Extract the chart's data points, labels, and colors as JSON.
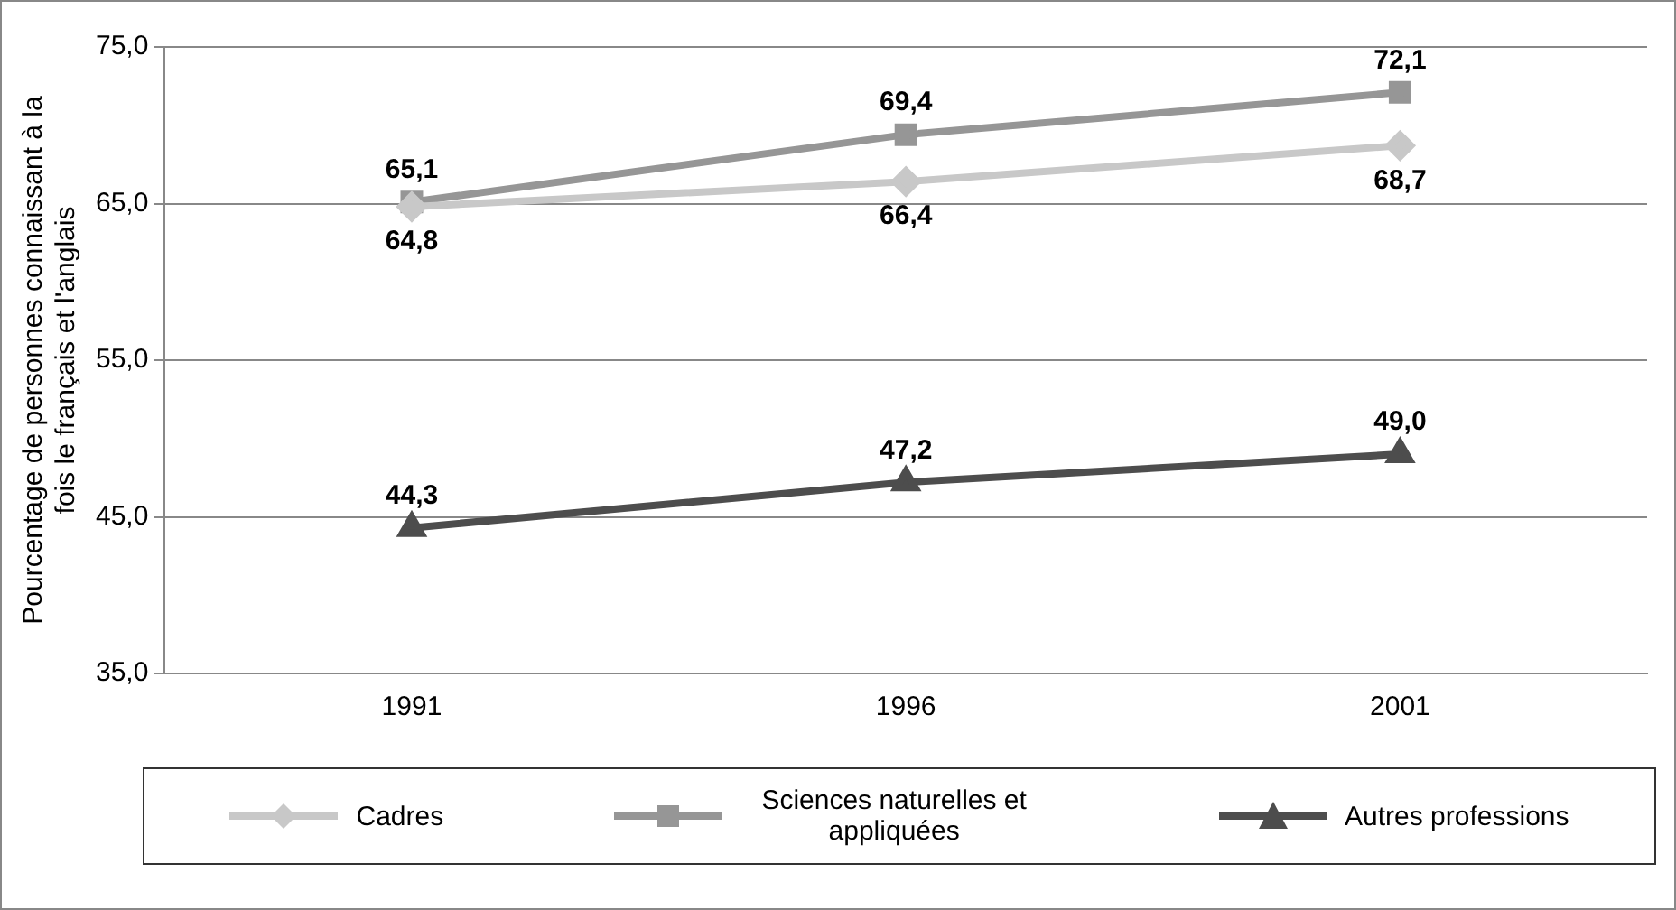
{
  "chart_data": {
    "type": "line",
    "ylabel": "Pourcentage de personnes connaissant à la fois le français et l'anglais",
    "categories": [
      "1991",
      "1996",
      "2001"
    ],
    "ylim": [
      35,
      75
    ],
    "yticks": [
      {
        "value": 35,
        "label": "35,0"
      },
      {
        "value": 45,
        "label": "45,0"
      },
      {
        "value": 55,
        "label": "55,0"
      },
      {
        "value": 65,
        "label": "65,0"
      },
      {
        "value": 75,
        "label": "75,0"
      }
    ],
    "grid": "y",
    "legend": "bottom",
    "series": [
      {
        "name": "Cadres",
        "color": "#c8c8c8",
        "marker": "diamond",
        "values": [
          64.8,
          66.4,
          68.7
        ],
        "value_labels": [
          "64,8",
          "66,4",
          "68,7"
        ]
      },
      {
        "name": "Sciences naturelles et appliquées",
        "color": "#969696",
        "marker": "square",
        "values": [
          65.1,
          69.4,
          72.1
        ],
        "value_labels": [
          "65,1",
          "69,4",
          "72,1"
        ]
      },
      {
        "name": "Autres professions",
        "color": "#4d4d4d",
        "marker": "triangle",
        "values": [
          44.3,
          47.2,
          49.0
        ],
        "value_labels": [
          "44,3",
          "47,2",
          "49,0"
        ]
      }
    ]
  }
}
